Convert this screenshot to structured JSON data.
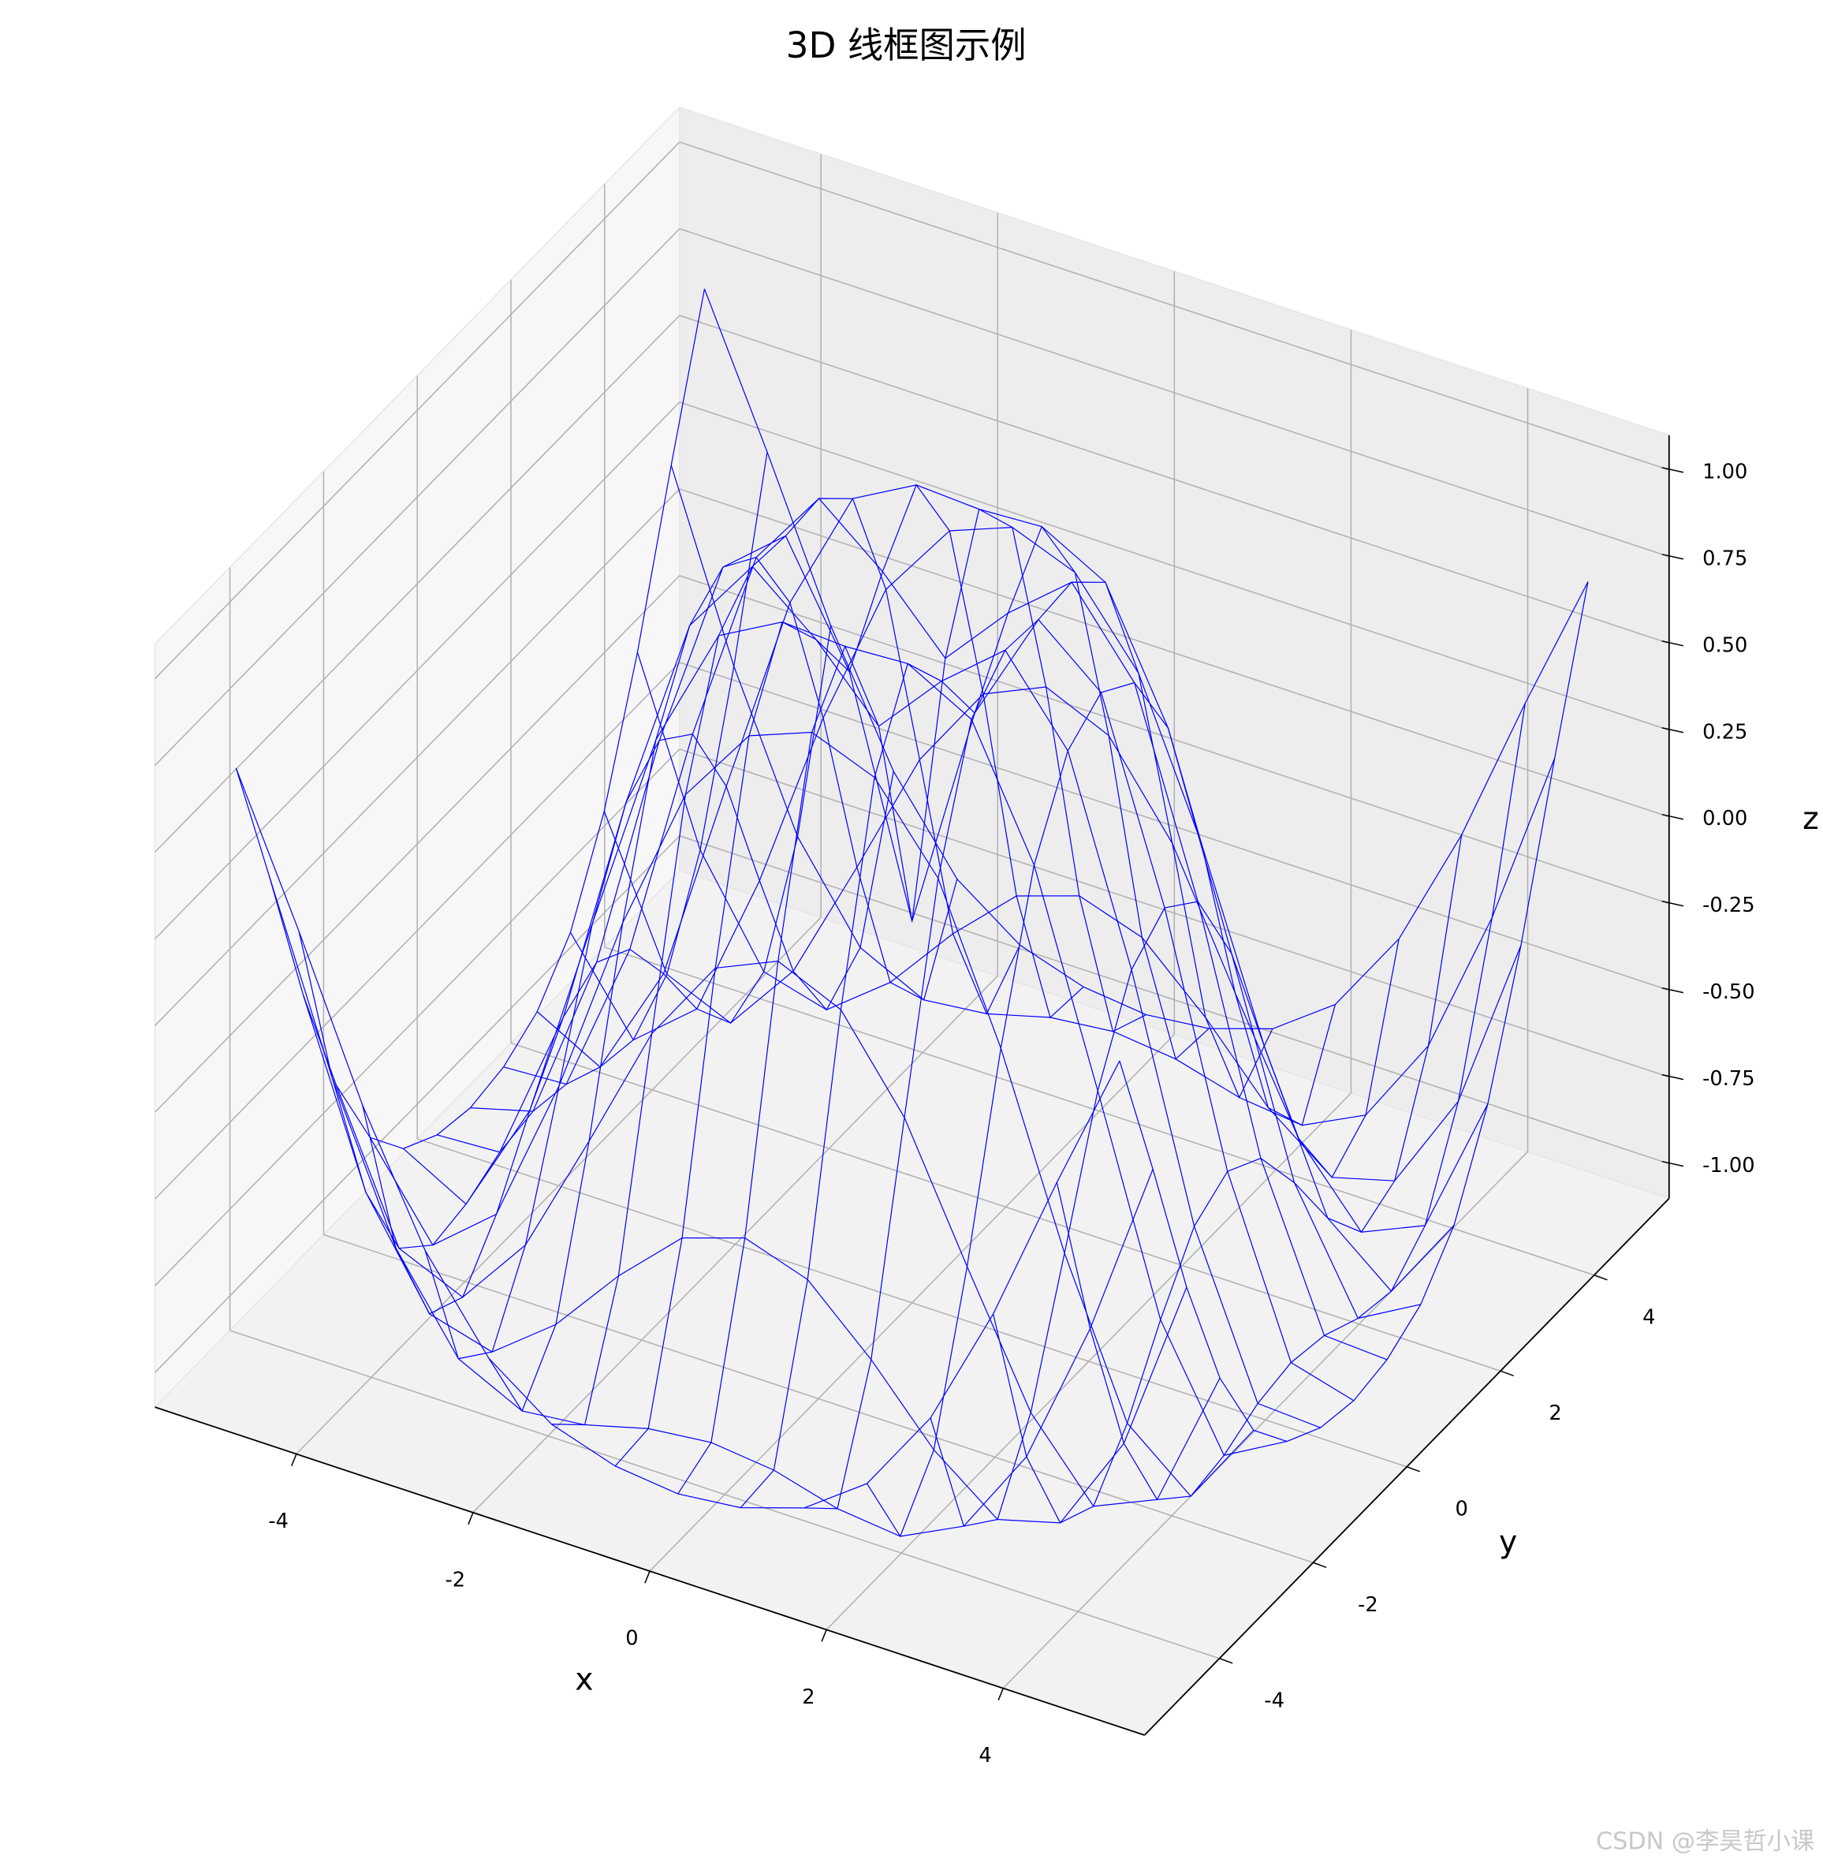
{
  "chart_data": {
    "type": "wireframe",
    "title": "3D 线框图示例",
    "color": "#0000ff",
    "x_label": "x",
    "y_label": "y",
    "z_label": "z",
    "x": [
      -5,
      -4.29,
      -3.57,
      -2.86,
      -2.14,
      -1.43,
      -0.71,
      0,
      0.71,
      1.43,
      2.14,
      2.86,
      3.57,
      4.29,
      5
    ],
    "y": [
      -5,
      -4.29,
      -3.57,
      -2.86,
      -2.14,
      -1.43,
      -0.71,
      0,
      0.71,
      1.43,
      2.14,
      2.86,
      3.57,
      4.29,
      5
    ],
    "z": [
      [
        0.71,
        0.3,
        -0.14,
        -0.5,
        -0.75,
        -0.88,
        -0.94,
        -0.96,
        -0.94,
        -0.88,
        -0.75,
        -0.5,
        -0.14,
        0.3,
        0.71
      ],
      [
        0.3,
        -0.22,
        -0.65,
        -0.91,
        -1.0,
        -0.98,
        -0.93,
        -0.91,
        -0.93,
        -0.98,
        -1.0,
        -0.91,
        -0.65,
        -0.22,
        0.3
      ],
      [
        -0.14,
        -0.65,
        -0.94,
        -0.99,
        -0.85,
        -0.65,
        -0.48,
        -0.42,
        -0.48,
        -0.65,
        -0.85,
        -0.99,
        -0.94,
        -0.65,
        -0.14
      ],
      [
        -0.5,
        -0.91,
        -0.99,
        -0.78,
        -0.42,
        -0.05,
        0.2,
        0.28,
        0.2,
        -0.05,
        -0.42,
        -0.78,
        -0.99,
        -0.91,
        -0.5
      ],
      [
        -0.75,
        -1.0,
        -0.85,
        -0.42,
        0.11,
        0.54,
        0.77,
        0.84,
        0.77,
        0.54,
        0.11,
        -0.42,
        -0.85,
        -1.0,
        -0.75
      ],
      [
        -0.88,
        -0.98,
        -0.65,
        -0.05,
        0.54,
        0.9,
        1.0,
        0.99,
        1.0,
        0.9,
        0.54,
        -0.05,
        -0.65,
        -0.98,
        -0.88
      ],
      [
        -0.94,
        -0.93,
        -0.48,
        0.2,
        0.77,
        1.0,
        0.85,
        0.66,
        0.85,
        1.0,
        0.77,
        0.2,
        -0.48,
        -0.93,
        -0.94
      ],
      [
        -0.96,
        -0.91,
        -0.42,
        0.28,
        0.84,
        0.99,
        0.66,
        0,
        0.66,
        0.99,
        0.84,
        0.28,
        -0.42,
        -0.91,
        -0.96
      ],
      [
        -0.94,
        -0.93,
        -0.48,
        0.2,
        0.77,
        1.0,
        0.85,
        0.66,
        0.85,
        1.0,
        0.77,
        0.2,
        -0.48,
        -0.93,
        -0.94
      ],
      [
        -0.88,
        -0.98,
        -0.65,
        -0.05,
        0.54,
        0.9,
        1.0,
        0.99,
        1.0,
        0.9,
        0.54,
        -0.05,
        -0.65,
        -0.98,
        -0.88
      ],
      [
        -0.75,
        -1.0,
        -0.85,
        -0.42,
        0.11,
        0.54,
        0.77,
        0.84,
        0.77,
        0.54,
        0.11,
        -0.42,
        -0.85,
        -1.0,
        -0.75
      ],
      [
        -0.5,
        -0.91,
        -0.99,
        -0.78,
        -0.42,
        -0.05,
        0.2,
        0.28,
        0.2,
        -0.05,
        -0.42,
        -0.78,
        -0.99,
        -0.91,
        -0.5
      ],
      [
        -0.14,
        -0.65,
        -0.94,
        -0.99,
        -0.85,
        -0.65,
        -0.48,
        -0.42,
        -0.48,
        -0.65,
        -0.85,
        -0.99,
        -0.94,
        -0.65,
        -0.14
      ],
      [
        0.3,
        -0.22,
        -0.65,
        -0.91,
        -1.0,
        -0.98,
        -0.93,
        -0.91,
        -0.93,
        -0.98,
        -1.0,
        -0.91,
        -0.65,
        -0.22,
        0.3
      ],
      [
        0.71,
        0.3,
        -0.14,
        -0.5,
        -0.75,
        -0.88,
        -0.94,
        -0.96,
        -0.94,
        -0.88,
        -0.75,
        -0.5,
        -0.14,
        0.3,
        0.71
      ]
    ],
    "xlim": [
      -5.6,
      5.6
    ],
    "ylim": [
      -5.6,
      5.6
    ],
    "zlim": [
      -1.1,
      1.1
    ],
    "xticks": [
      -4,
      -2,
      0,
      2,
      4
    ],
    "yticks": [
      -4,
      -2,
      0,
      2,
      4
    ],
    "zticks": [
      {
        "value": -1,
        "label": "-1.00"
      },
      {
        "value": -0.75,
        "label": "-0.75"
      },
      {
        "value": -0.5,
        "label": "-0.50"
      },
      {
        "value": -0.25,
        "label": "-0.25"
      },
      {
        "value": 0,
        "label": "0.00"
      },
      {
        "value": 0.25,
        "label": "0.25"
      },
      {
        "value": 0.5,
        "label": "0.50"
      },
      {
        "value": 0.75,
        "label": "0.75"
      },
      {
        "value": 1,
        "label": "1.00"
      }
    ],
    "grid": true,
    "watermark": "CSDN @李昊哲小课"
  }
}
